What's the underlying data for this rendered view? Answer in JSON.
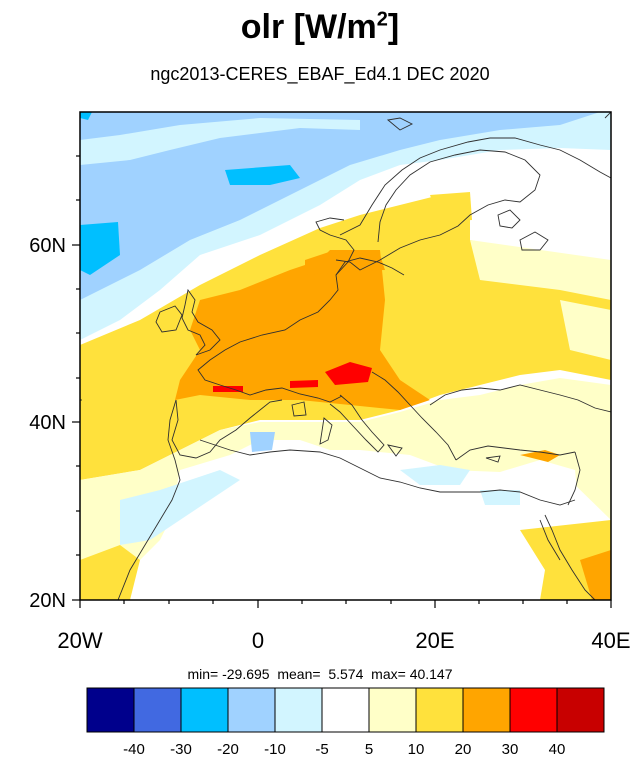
{
  "title": {
    "main": "olr [W/m",
    "sup": "2",
    "close": "]"
  },
  "subtitle": "ngc2013-CERES_EBAF_Ed4.1  DEC 2020",
  "axes": {
    "lat_ticks": [
      "60N",
      "40N",
      "20N"
    ],
    "lon_ticks": [
      "20W",
      "0",
      "20E",
      "40E"
    ]
  },
  "stats": {
    "min_label": "min=",
    "min": "-29.695",
    "mean_label": "mean=",
    "mean": "5.574",
    "max_label": "max=",
    "max": "40.147"
  },
  "colorbar": {
    "colors": [
      "#00008c",
      "#4169e1",
      "#00bfff",
      "#a0d2ff",
      "#d2f5ff",
      "#ffffff",
      "#ffffc8",
      "#ffe13c",
      "#ffa500",
      "#ff0000",
      "#c80000"
    ],
    "labels": [
      "-40",
      "-30",
      "-20",
      "-10",
      "-5",
      "5",
      "10",
      "20",
      "30",
      "40"
    ]
  },
  "chart_data": {
    "type": "heatmap",
    "variable": "olr",
    "units": "W/m2",
    "dataset": "ngc2013-CERES_EBAF_Ed4.1",
    "period": "DEC 2020",
    "lon_range": [
      -20,
      40
    ],
    "lat_range": [
      20,
      75
    ],
    "min": -29.695,
    "mean": 5.574,
    "max": 40.147
  }
}
